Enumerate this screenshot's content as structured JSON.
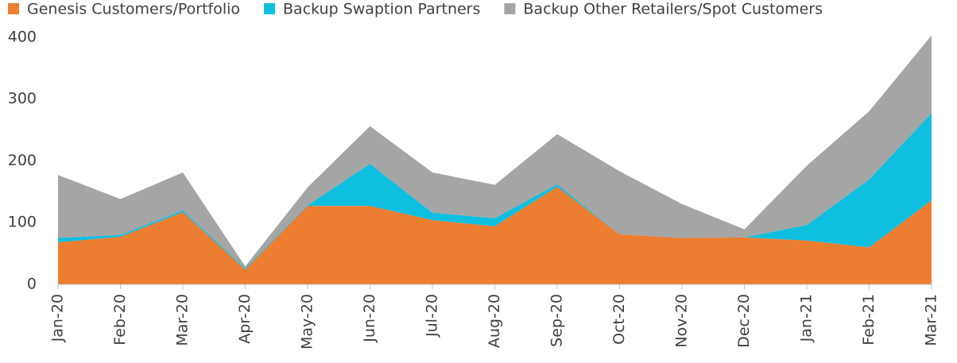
{
  "chart_data": {
    "type": "stacked_area",
    "categories": [
      "Jan-20",
      "Feb-20",
      "Mar-20",
      "Apr-20",
      "May-20",
      "Jun-20",
      "Jul-20",
      "Aug-20",
      "Sep-20",
      "Oct-20",
      "Nov-20",
      "Dec-20",
      "Jan-21",
      "Feb-21",
      "Mar-21"
    ],
    "series": [
      {
        "name": "Genesis Customers/Portfolio",
        "color": "#ED7D31",
        "values": [
          68,
          77,
          117,
          24,
          127,
          127,
          104,
          94,
          158,
          81,
          75,
          76,
          71,
          60,
          136
        ]
      },
      {
        "name": "Backup Swaption Partners",
        "color": "#0FBFE0",
        "values": [
          7,
          3,
          3,
          2,
          1,
          68,
          12,
          13,
          4,
          0,
          0,
          0,
          25,
          110,
          141
        ]
      },
      {
        "name": "Backup Other Retailers/Spot Customers",
        "color": "#A5A5A5",
        "values": [
          102,
          58,
          61,
          3,
          29,
          61,
          65,
          54,
          81,
          102,
          55,
          13,
          96,
          110,
          126
        ]
      }
    ],
    "ylim": [
      0,
      410
    ],
    "yticks": [
      0,
      100,
      200,
      300,
      400
    ],
    "legend": "top"
  }
}
